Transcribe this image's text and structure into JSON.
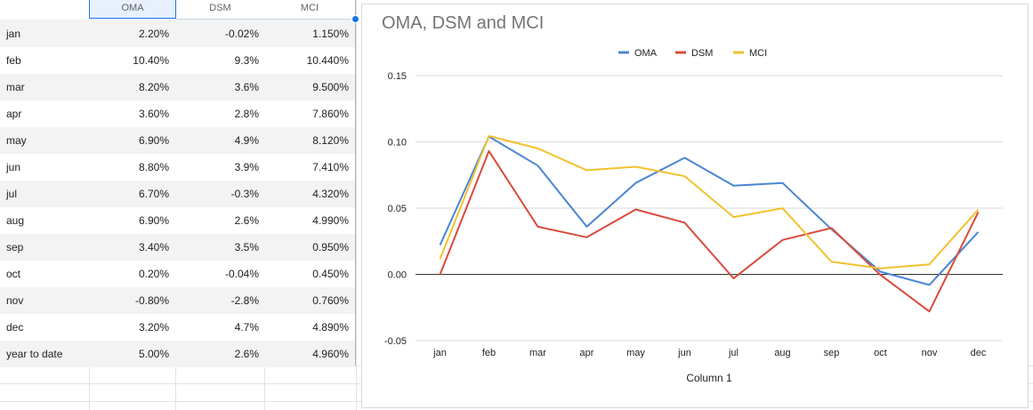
{
  "table": {
    "headers": [
      "OMA",
      "DSM",
      "MCI"
    ],
    "rows": [
      {
        "label": "jan",
        "oma": "2.20%",
        "dsm": "-0.02%",
        "mci": "1.150%"
      },
      {
        "label": "feb",
        "oma": "10.40%",
        "dsm": "9.3%",
        "mci": "10.440%"
      },
      {
        "label": "mar",
        "oma": "8.20%",
        "dsm": "3.6%",
        "mci": "9.500%"
      },
      {
        "label": "apr",
        "oma": "3.60%",
        "dsm": "2.8%",
        "mci": "7.860%"
      },
      {
        "label": "may",
        "oma": "6.90%",
        "dsm": "4.9%",
        "mci": "8.120%"
      },
      {
        "label": "jun",
        "oma": "8.80%",
        "dsm": "3.9%",
        "mci": "7.410%"
      },
      {
        "label": "jul",
        "oma": "6.70%",
        "dsm": "-0.3%",
        "mci": "4.320%"
      },
      {
        "label": "aug",
        "oma": "6.90%",
        "dsm": "2.6%",
        "mci": "4.990%"
      },
      {
        "label": "sep",
        "oma": "3.40%",
        "dsm": "3.5%",
        "mci": "0.950%"
      },
      {
        "label": "oct",
        "oma": "0.20%",
        "dsm": "-0.04%",
        "mci": "0.450%"
      },
      {
        "label": "nov",
        "oma": "-0.80%",
        "dsm": "-2.8%",
        "mci": "0.760%"
      },
      {
        "label": "dec",
        "oma": "3.20%",
        "dsm": "4.7%",
        "mci": "4.890%"
      },
      {
        "label": "year to date",
        "oma": "5.00%",
        "dsm": "2.6%",
        "mci": "4.960%"
      }
    ]
  },
  "chart_data": {
    "type": "line",
    "title": "OMA, DSM and MCI",
    "xlabel": "Column 1",
    "ylabel": "",
    "categories": [
      "jan",
      "feb",
      "mar",
      "apr",
      "may",
      "jun",
      "jul",
      "aug",
      "sep",
      "oct",
      "nov",
      "dec"
    ],
    "ylim": [
      -0.05,
      0.15
    ],
    "yticks": [
      -0.05,
      0.0,
      0.05,
      0.1,
      0.15
    ],
    "ytick_labels": [
      "-0.05",
      "0.00",
      "0.05",
      "0.10",
      "0.15"
    ],
    "legend_position": "top-center",
    "grid": true,
    "series": [
      {
        "name": "OMA",
        "color": "#4a86d4",
        "values": [
          0.022,
          0.104,
          0.082,
          0.036,
          0.069,
          0.088,
          0.067,
          0.069,
          0.034,
          0.002,
          -0.008,
          0.032
        ]
      },
      {
        "name": "DSM",
        "color": "#d94a3d",
        "values": [
          -0.0002,
          0.093,
          0.036,
          0.028,
          0.049,
          0.039,
          -0.003,
          0.026,
          0.035,
          -0.0004,
          -0.028,
          0.047
        ]
      },
      {
        "name": "MCI",
        "color": "#f2c12e",
        "values": [
          0.0115,
          0.1044,
          0.095,
          0.0786,
          0.0812,
          0.0741,
          0.0432,
          0.0499,
          0.0095,
          0.0045,
          0.0076,
          0.0489
        ]
      }
    ]
  }
}
